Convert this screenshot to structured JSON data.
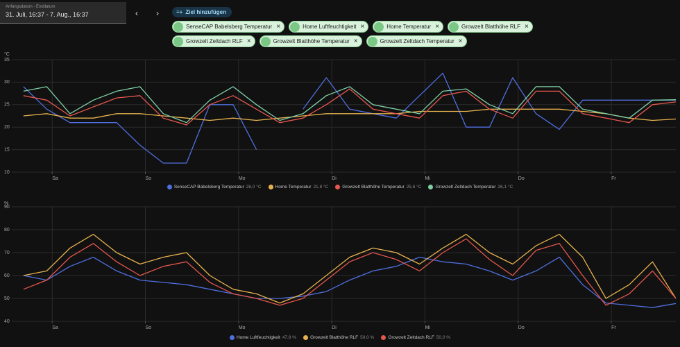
{
  "date_range": {
    "label": "Anfangsdatum - Enddatum",
    "value": "31. Juli, 16:37 - 7. Aug., 16:37"
  },
  "add_target": "Ziel hinzufügen",
  "chips": [
    "SenseCAP Babelsberg Temperatur",
    "Home Luftfeuchtigkeit",
    "Home Temperatur",
    "Growzelt Blatthöhe RLF",
    "Growzelt Zeltdach RLF",
    "Growzelt Blatthöhe Temperatur",
    "Growzelt Zeltdach Temperatur"
  ],
  "chart_data": [
    {
      "type": "line",
      "y_label": "°C",
      "x": [
        0,
        6,
        12,
        18,
        24,
        30,
        36,
        42,
        48,
        54,
        60,
        66,
        72,
        78,
        84,
        90,
        96,
        102,
        108,
        114,
        120,
        126,
        132,
        138,
        144,
        150,
        156,
        162,
        168
      ],
      "xlim": [
        -3,
        168
      ],
      "xticks": [
        {
          "value": 7.4,
          "label": "Sa"
        },
        {
          "value": 31.4,
          "label": "So"
        },
        {
          "value": 55.4,
          "label": "Mo"
        },
        {
          "value": 79.4,
          "label": "Di"
        },
        {
          "value": 103.4,
          "label": "Mi"
        },
        {
          "value": 127.4,
          "label": "Do"
        },
        {
          "value": 151.4,
          "label": "Fr"
        }
      ],
      "ylim": [
        10,
        35
      ],
      "yticks": [
        10,
        15,
        20,
        25,
        30,
        35
      ],
      "grid": true,
      "series": [
        {
          "name": "SenseCAP Babelsberg Temperatur",
          "legend_value": "26,0 °C",
          "color": "#4f6fe0",
          "values": [
            29,
            24,
            21,
            21,
            21,
            16,
            12,
            12,
            25,
            25,
            15,
            null,
            24,
            31,
            24,
            23,
            22,
            27,
            32,
            20,
            20,
            31,
            23,
            19.5,
            26,
            26,
            26,
            26,
            26
          ]
        },
        {
          "name": "Home Temperatur",
          "legend_value": "21,8 °C",
          "color": "#e6b24e",
          "values": [
            22.5,
            23,
            22,
            22,
            23,
            23,
            22.5,
            22,
            21.5,
            22,
            21.5,
            22,
            22.5,
            23,
            23,
            23,
            23,
            23.5,
            23.5,
            23.5,
            24,
            24,
            24,
            24,
            23.5,
            23,
            22,
            21.5,
            21.8
          ]
        },
        {
          "name": "Growzelt Blatthöhe Temperatur",
          "legend_value": "25,6 °C",
          "color": "#e5574d",
          "values": [
            27,
            26,
            22.5,
            24.5,
            26.5,
            27,
            22,
            20.5,
            25,
            27,
            24,
            21,
            22,
            25,
            28.5,
            24,
            23,
            22,
            27,
            28,
            24,
            22,
            28,
            28,
            23,
            22,
            21,
            25,
            25.6
          ]
        },
        {
          "name": "Growzelt Zeltdach Temperatur",
          "legend_value": "26,1 °C",
          "color": "#7fcfa6",
          "values": [
            28,
            29,
            23,
            26,
            28,
            29,
            23,
            21,
            26,
            29,
            25,
            21.5,
            23,
            27,
            29,
            25,
            24,
            23,
            28,
            28.5,
            25,
            23,
            29,
            29,
            24,
            23,
            22,
            26,
            26.1
          ]
        }
      ]
    },
    {
      "type": "line",
      "y_label": "%",
      "x": [
        0,
        6,
        12,
        18,
        24,
        30,
        36,
        42,
        48,
        54,
        60,
        66,
        72,
        78,
        84,
        90,
        96,
        102,
        108,
        114,
        120,
        126,
        132,
        138,
        144,
        150,
        156,
        162,
        168
      ],
      "xlim": [
        -3,
        168
      ],
      "xticks": [
        {
          "value": 7.4,
          "label": "Sa"
        },
        {
          "value": 31.4,
          "label": "So"
        },
        {
          "value": 55.4,
          "label": "Mo"
        },
        {
          "value": 79.4,
          "label": "Di"
        },
        {
          "value": 103.4,
          "label": "Mi"
        },
        {
          "value": 127.4,
          "label": "Do"
        },
        {
          "value": 151.4,
          "label": "Fr"
        }
      ],
      "ylim": [
        40,
        90
      ],
      "yticks": [
        40,
        50,
        60,
        70,
        80,
        90
      ],
      "grid": true,
      "series": [
        {
          "name": "Home Luftfeuchtigkeit",
          "legend_value": "47,8 %",
          "color": "#4f6fe0",
          "values": [
            60,
            58,
            64,
            68,
            62,
            58,
            57,
            56,
            54,
            52,
            50,
            50,
            51,
            53,
            58,
            62,
            64,
            68,
            66,
            65,
            62,
            58,
            62,
            68,
            56,
            48,
            47,
            46,
            47.8
          ]
        },
        {
          "name": "Growzelt Blatthöhe RLF",
          "legend_value": "50,0 %",
          "color": "#e6b24e",
          "values": [
            60,
            62,
            72,
            78,
            70,
            65,
            68,
            70,
            60,
            54,
            52,
            48,
            52,
            60,
            68,
            72,
            70,
            65,
            72,
            78,
            70,
            65,
            73,
            78,
            68,
            50,
            56,
            66,
            50
          ]
        },
        {
          "name": "Growzelt Zeltdach RLF",
          "legend_value": "50,0 %",
          "color": "#e5574d",
          "values": [
            54,
            58,
            68,
            74,
            66,
            60,
            64,
            66,
            57,
            52,
            50,
            47,
            50,
            58,
            66,
            70,
            67,
            62,
            70,
            76,
            67,
            60,
            71,
            74,
            60,
            47,
            52,
            62,
            50
          ]
        }
      ]
    }
  ]
}
